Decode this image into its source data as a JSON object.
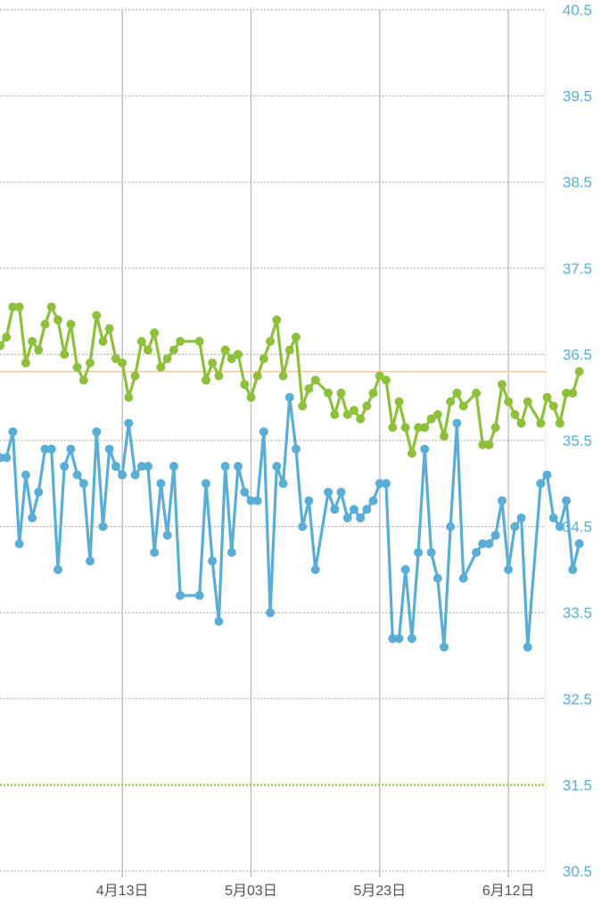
{
  "colors": {
    "series_green": "#8fc03c",
    "series_blue": "#5aaed6",
    "reference_line": "#f5c9a6",
    "baseline_dotted": "#9ccb55",
    "grid": "#a8a8a8",
    "vgrid": "#b5b5b5",
    "ytick_text": "#5aaed6",
    "xtick_text": "#555555"
  },
  "chart_data": {
    "type": "line",
    "ylim": [
      30.5,
      40.5
    ],
    "yticks": [
      "40.5",
      "39.5",
      "38.5",
      "37.5",
      "36.5",
      "35.5",
      "34.5",
      "33.5",
      "32.5",
      "31.5",
      "30.5"
    ],
    "xticks": [
      "4月13日",
      "5月03日",
      "5月23日",
      "6月12日"
    ],
    "xlim": [
      "2023-03-25",
      "2023-06-25"
    ],
    "reference_line_value": 36.3,
    "baseline_value": 31.5,
    "grid": true,
    "series": [
      {
        "color": "series_green",
        "points": [
          [
            "2023-03-25",
            36.6
          ],
          [
            "2023-03-26",
            36.7
          ],
          [
            "2023-03-27",
            37.05
          ],
          [
            "2023-03-28",
            37.05
          ],
          [
            "2023-03-29",
            36.4
          ],
          [
            "2023-03-30",
            36.65
          ],
          [
            "2023-03-31",
            36.55
          ],
          [
            "2023-04-01",
            36.85
          ],
          [
            "2023-04-02",
            37.05
          ],
          [
            "2023-04-03",
            36.9
          ],
          [
            "2023-04-04",
            36.5
          ],
          [
            "2023-04-05",
            36.85
          ],
          [
            "2023-04-06",
            36.35
          ],
          [
            "2023-04-07",
            36.2
          ],
          [
            "2023-04-08",
            36.4
          ],
          [
            "2023-04-09",
            36.95
          ],
          [
            "2023-04-10",
            36.65
          ],
          [
            "2023-04-11",
            36.8
          ],
          [
            "2023-04-12",
            36.45
          ],
          [
            "2023-04-13",
            36.4
          ],
          [
            "2023-04-14",
            36.0
          ],
          [
            "2023-04-15",
            36.25
          ],
          [
            "2023-04-16",
            36.65
          ],
          [
            "2023-04-17",
            36.55
          ],
          [
            "2023-04-18",
            36.75
          ],
          [
            "2023-04-19",
            36.35
          ],
          [
            "2023-04-20",
            36.45
          ],
          [
            "2023-04-21",
            36.55
          ],
          [
            "2023-04-22",
            36.65
          ],
          [
            "2023-04-25",
            36.65
          ],
          [
            "2023-04-26",
            36.2
          ],
          [
            "2023-04-27",
            36.4
          ],
          [
            "2023-04-28",
            36.25
          ],
          [
            "2023-04-29",
            36.55
          ],
          [
            "2023-04-30",
            36.45
          ],
          [
            "2023-05-01",
            36.5
          ],
          [
            "2023-05-02",
            36.15
          ],
          [
            "2023-05-03",
            36.0
          ],
          [
            "2023-05-04",
            36.25
          ],
          [
            "2023-05-05",
            36.45
          ],
          [
            "2023-05-06",
            36.65
          ],
          [
            "2023-05-07",
            36.9
          ],
          [
            "2023-05-08",
            36.25
          ],
          [
            "2023-05-09",
            36.55
          ],
          [
            "2023-05-10",
            36.7
          ],
          [
            "2023-05-11",
            35.9
          ],
          [
            "2023-05-12",
            36.1
          ],
          [
            "2023-05-13",
            36.2
          ],
          [
            "2023-05-15",
            36.05
          ],
          [
            "2023-05-16",
            35.8
          ],
          [
            "2023-05-17",
            36.05
          ],
          [
            "2023-05-18",
            35.8
          ],
          [
            "2023-05-19",
            35.85
          ],
          [
            "2023-05-20",
            35.75
          ],
          [
            "2023-05-21",
            35.9
          ],
          [
            "2023-05-22",
            36.05
          ],
          [
            "2023-05-23",
            36.25
          ],
          [
            "2023-05-24",
            36.2
          ],
          [
            "2023-05-25",
            35.65
          ],
          [
            "2023-05-26",
            35.95
          ],
          [
            "2023-05-27",
            35.65
          ],
          [
            "2023-05-28",
            35.35
          ],
          [
            "2023-05-29",
            35.65
          ],
          [
            "2023-05-30",
            35.65
          ],
          [
            "2023-05-31",
            35.75
          ],
          [
            "2023-06-01",
            35.8
          ],
          [
            "2023-06-02",
            35.55
          ],
          [
            "2023-06-03",
            35.95
          ],
          [
            "2023-06-04",
            36.05
          ],
          [
            "2023-06-05",
            35.9
          ],
          [
            "2023-06-07",
            36.05
          ],
          [
            "2023-06-08",
            35.45
          ],
          [
            "2023-06-09",
            35.45
          ],
          [
            "2023-06-10",
            35.65
          ],
          [
            "2023-06-11",
            36.15
          ],
          [
            "2023-06-12",
            35.95
          ],
          [
            "2023-06-13",
            35.8
          ],
          [
            "2023-06-14",
            35.7
          ],
          [
            "2023-06-15",
            35.95
          ],
          [
            "2023-06-17",
            35.7
          ],
          [
            "2023-06-18",
            36.0
          ],
          [
            "2023-06-19",
            35.9
          ],
          [
            "2023-06-20",
            35.7
          ],
          [
            "2023-06-21",
            36.05
          ],
          [
            "2023-06-22",
            36.05
          ],
          [
            "2023-06-23",
            36.3
          ]
        ]
      },
      {
        "color": "series_blue",
        "points": [
          [
            "2023-03-25",
            35.3
          ],
          [
            "2023-03-26",
            35.3
          ],
          [
            "2023-03-27",
            35.6
          ],
          [
            "2023-03-28",
            34.3
          ],
          [
            "2023-03-29",
            35.1
          ],
          [
            "2023-03-30",
            34.6
          ],
          [
            "2023-03-31",
            34.9
          ],
          [
            "2023-04-01",
            35.4
          ],
          [
            "2023-04-02",
            35.4
          ],
          [
            "2023-04-03",
            34.0
          ],
          [
            "2023-04-04",
            35.2
          ],
          [
            "2023-04-05",
            35.4
          ],
          [
            "2023-04-06",
            35.1
          ],
          [
            "2023-04-07",
            35.0
          ],
          [
            "2023-04-08",
            34.1
          ],
          [
            "2023-04-09",
            35.6
          ],
          [
            "2023-04-10",
            34.5
          ],
          [
            "2023-04-11",
            35.4
          ],
          [
            "2023-04-12",
            35.2
          ],
          [
            "2023-04-13",
            35.1
          ],
          [
            "2023-04-14",
            35.7
          ],
          [
            "2023-04-15",
            35.1
          ],
          [
            "2023-04-16",
            35.2
          ],
          [
            "2023-04-17",
            35.2
          ],
          [
            "2023-04-18",
            34.2
          ],
          [
            "2023-04-19",
            35.0
          ],
          [
            "2023-04-20",
            34.4
          ],
          [
            "2023-04-21",
            35.2
          ],
          [
            "2023-04-22",
            33.7
          ],
          [
            "2023-04-25",
            33.7
          ],
          [
            "2023-04-26",
            35.0
          ],
          [
            "2023-04-27",
            34.1
          ],
          [
            "2023-04-28",
            33.4
          ],
          [
            "2023-04-29",
            35.2
          ],
          [
            "2023-04-30",
            34.2
          ],
          [
            "2023-05-01",
            35.2
          ],
          [
            "2023-05-02",
            34.9
          ],
          [
            "2023-05-03",
            34.8
          ],
          [
            "2023-05-04",
            34.8
          ],
          [
            "2023-05-05",
            35.6
          ],
          [
            "2023-05-06",
            33.5
          ],
          [
            "2023-05-07",
            35.2
          ],
          [
            "2023-05-08",
            35.0
          ],
          [
            "2023-05-09",
            36.0
          ],
          [
            "2023-05-10",
            35.4
          ],
          [
            "2023-05-11",
            34.5
          ],
          [
            "2023-05-12",
            34.8
          ],
          [
            "2023-05-13",
            34.0
          ],
          [
            "2023-05-15",
            34.9
          ],
          [
            "2023-05-16",
            34.7
          ],
          [
            "2023-05-17",
            34.9
          ],
          [
            "2023-05-18",
            34.6
          ],
          [
            "2023-05-19",
            34.7
          ],
          [
            "2023-05-20",
            34.6
          ],
          [
            "2023-05-21",
            34.7
          ],
          [
            "2023-05-22",
            34.8
          ],
          [
            "2023-05-23",
            35.0
          ],
          [
            "2023-05-24",
            35.0
          ],
          [
            "2023-05-25",
            33.2
          ],
          [
            "2023-05-26",
            33.2
          ],
          [
            "2023-05-27",
            34.0
          ],
          [
            "2023-05-28",
            33.2
          ],
          [
            "2023-05-29",
            34.2
          ],
          [
            "2023-05-30",
            35.4
          ],
          [
            "2023-05-31",
            34.2
          ],
          [
            "2023-06-01",
            33.9
          ],
          [
            "2023-06-02",
            33.1
          ],
          [
            "2023-06-03",
            34.5
          ],
          [
            "2023-06-04",
            35.7
          ],
          [
            "2023-06-05",
            33.9
          ],
          [
            "2023-06-07",
            34.2
          ],
          [
            "2023-06-08",
            34.3
          ],
          [
            "2023-06-09",
            34.3
          ],
          [
            "2023-06-10",
            34.4
          ],
          [
            "2023-06-11",
            34.8
          ],
          [
            "2023-06-12",
            34.0
          ],
          [
            "2023-06-13",
            34.5
          ],
          [
            "2023-06-14",
            34.6
          ],
          [
            "2023-06-15",
            33.1
          ],
          [
            "2023-06-17",
            35.0
          ],
          [
            "2023-06-18",
            35.1
          ],
          [
            "2023-06-19",
            34.6
          ],
          [
            "2023-06-20",
            34.5
          ],
          [
            "2023-06-21",
            34.8
          ],
          [
            "2023-06-22",
            34.0
          ],
          [
            "2023-06-23",
            34.3
          ]
        ]
      }
    ]
  }
}
